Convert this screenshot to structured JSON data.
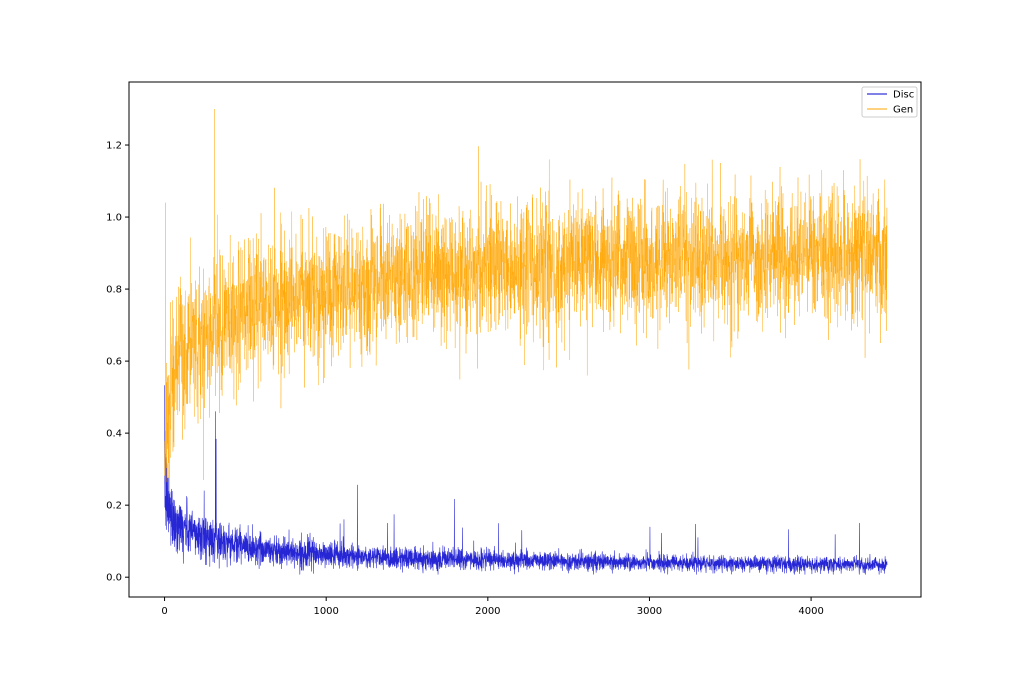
{
  "chart_data": {
    "type": "line",
    "title": "",
    "xlabel": "",
    "ylabel": "",
    "xlim": [
      -220,
      4680
    ],
    "ylim": [
      -0.055,
      1.375
    ],
    "xticks": [
      0,
      1000,
      2000,
      3000,
      4000
    ],
    "yticks": [
      0.0,
      0.2,
      0.4,
      0.6,
      0.8,
      1.0,
      1.2
    ],
    "grid": false,
    "legend_position": "top-right",
    "x_range": [
      0,
      4470
    ],
    "series": [
      {
        "name": "Disc",
        "color": "#0000cc",
        "envelope_x": [
          0,
          10,
          30,
          60,
          100,
          200,
          300,
          500,
          800,
          1200,
          1600,
          2000,
          2500,
          3000,
          3500,
          4000,
          4470
        ],
        "envelope_y": [
          0.3,
          0.22,
          0.19,
          0.16,
          0.14,
          0.12,
          0.105,
          0.085,
          0.068,
          0.058,
          0.052,
          0.048,
          0.044,
          0.04,
          0.038,
          0.036,
          0.035
        ],
        "spikes": [
          {
            "x": 315,
            "y": 0.46
          },
          {
            "x": 245,
            "y": 0.24
          },
          {
            "x": 1110,
            "y": 0.16
          },
          {
            "x": 1380,
            "y": 0.15
          },
          {
            "x": 2210,
            "y": 0.13
          },
          {
            "x": 3300,
            "y": 0.11
          },
          {
            "x": 4300,
            "y": 0.15
          }
        ]
      },
      {
        "name": "Gen",
        "color": "#ffa500",
        "envelope_x": [
          0,
          10,
          30,
          60,
          100,
          200,
          300,
          500,
          800,
          1200,
          1600,
          2000,
          2500,
          3000,
          3500,
          4000,
          4470
        ],
        "envelope_y": [
          0.3,
          0.42,
          0.5,
          0.56,
          0.6,
          0.66,
          0.69,
          0.74,
          0.78,
          0.81,
          0.84,
          0.86,
          0.87,
          0.88,
          0.89,
          0.89,
          0.89
        ],
        "spikes": [
          {
            "x": 310,
            "y": 1.3
          },
          {
            "x": 5,
            "y": 1.04
          },
          {
            "x": 2380,
            "y": 1.16
          },
          {
            "x": 3440,
            "y": 1.15
          },
          {
            "x": 4200,
            "y": 1.13
          },
          {
            "x": 2615,
            "y": 0.56
          },
          {
            "x": 3500,
            "y": 0.61
          },
          {
            "x": 240,
            "y": 0.27
          }
        ]
      }
    ]
  }
}
